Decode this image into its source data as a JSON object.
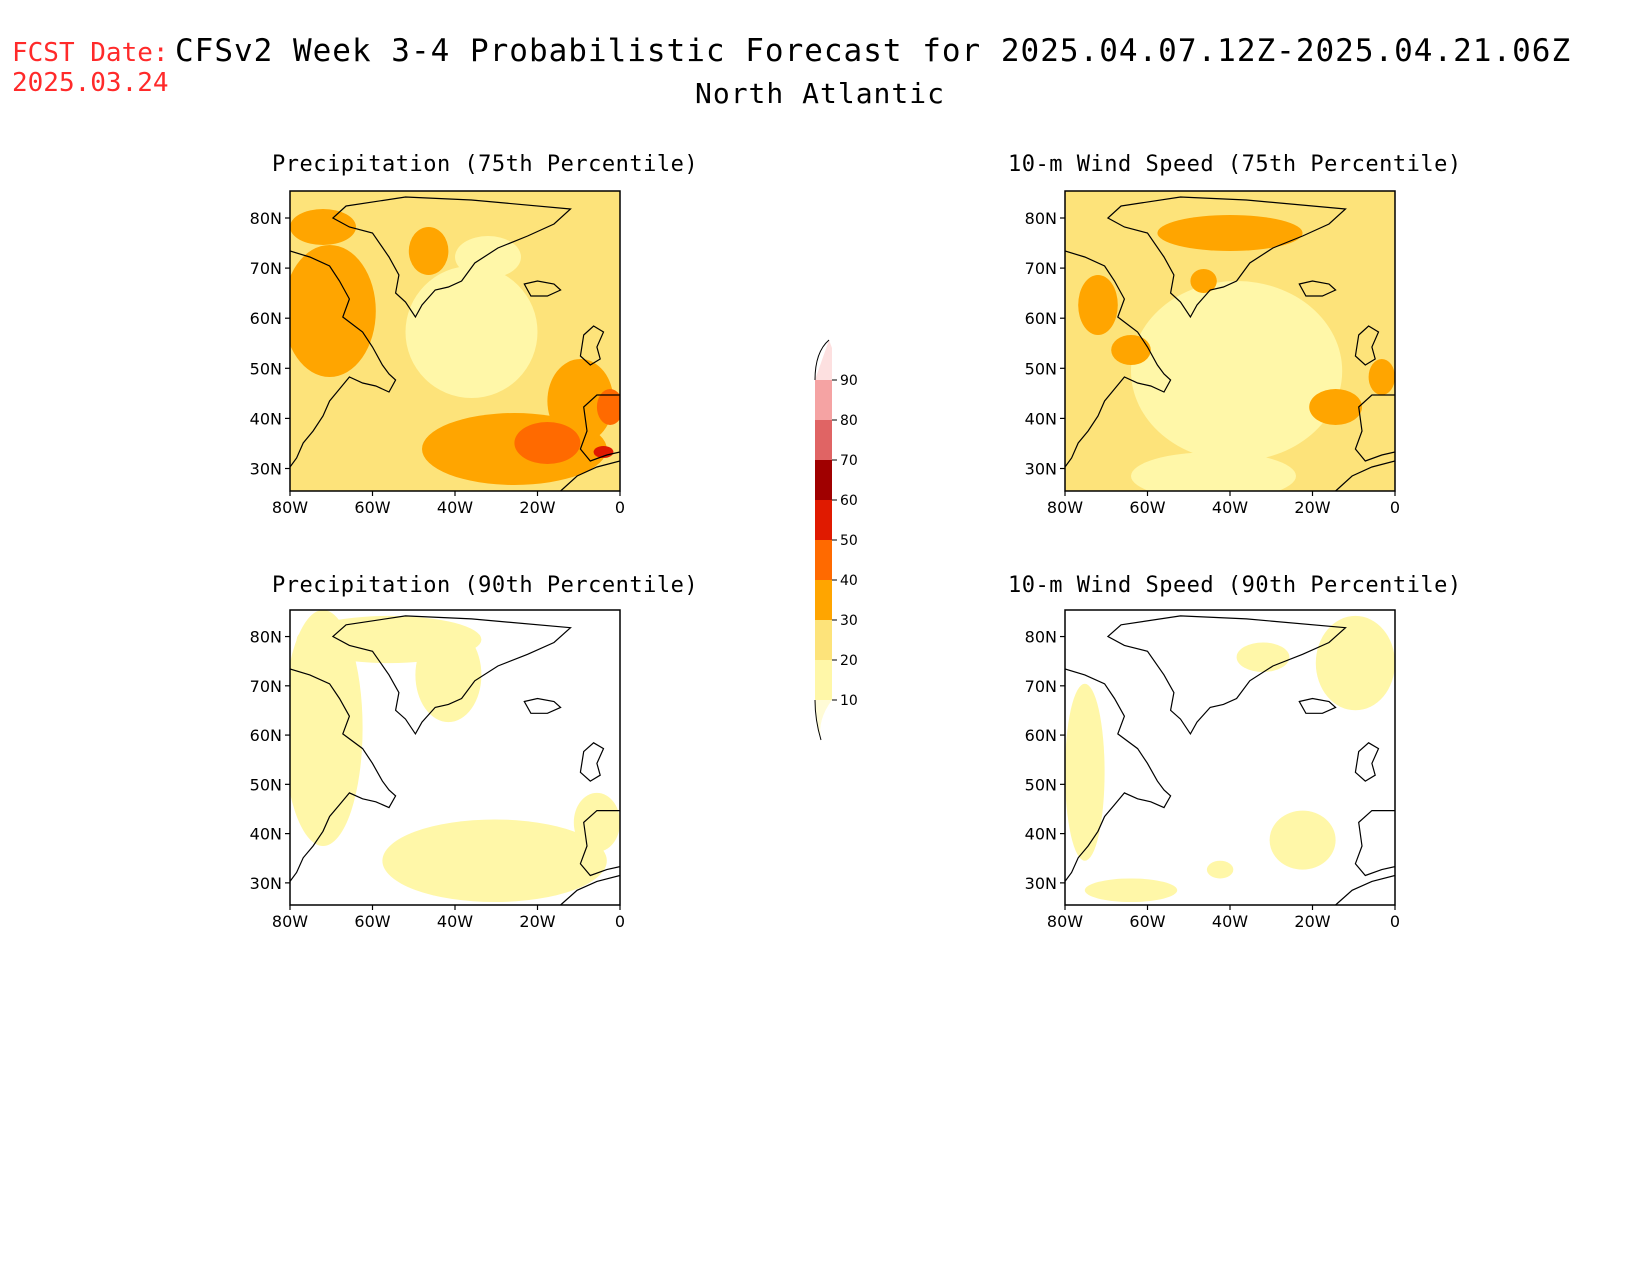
{
  "header": {
    "fcst_label": "FCST Date:",
    "fcst_date": "2025.03.24",
    "title": "CFSv2 Week 3-4 Probabilistic Forecast for 2025.04.07.12Z-2025.04.21.06Z",
    "subtitle": "North Atlantic"
  },
  "panels": [
    {
      "title": "Precipitation (75th Percentile)",
      "variable": "precipitation",
      "percentile": "75th"
    },
    {
      "title": "10-m Wind Speed (75th Percentile)",
      "variable": "wind",
      "percentile": "75th"
    },
    {
      "title": "Precipitation (90th Percentile)",
      "variable": "precipitation",
      "percentile": "90th"
    },
    {
      "title": "10-m Wind Speed (90th Percentile)",
      "variable": "wind",
      "percentile": "90th"
    }
  ],
  "axes": {
    "lat_labels": [
      "80N",
      "70N",
      "60N",
      "50N",
      "40N",
      "30N"
    ],
    "lon_labels": [
      "80W",
      "60W",
      "40W",
      "20W",
      "0"
    ]
  },
  "colorbar": {
    "levels": [
      "10",
      "20",
      "30",
      "40",
      "50",
      "60",
      "70",
      "80",
      "90"
    ],
    "colors": [
      "#fff7a8",
      "#fde37a",
      "#ffa500",
      "#ff6a00",
      "#e01a00",
      "#a00000",
      "#e06464",
      "#f5a3a3",
      "#fde0e0"
    ]
  }
}
